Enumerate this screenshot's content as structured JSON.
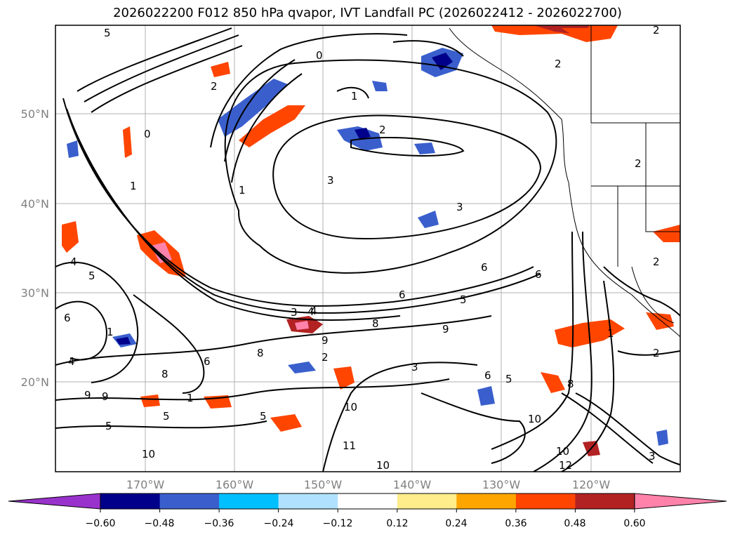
{
  "title": "2026022200 F012 850 hPa qvapor, IVT Landfall PC (2026022412 - 2026022700)",
  "lat_ticks": [
    "50°N",
    "40°N",
    "30°N",
    "20°N"
  ],
  "lon_ticks": [
    "170°W",
    "160°W",
    "150°W",
    "140°W",
    "130°W",
    "120°W"
  ],
  "colorbar": {
    "levels": [
      "−0.60",
      "−0.48",
      "−0.36",
      "−0.24",
      "−0.12",
      "0.12",
      "0.24",
      "0.36",
      "0.48",
      "0.60"
    ],
    "colors": [
      "#9932cc",
      "#00008b",
      "#3a5fcd",
      "#00bfff",
      "#b0e2ff",
      "#ffffff",
      "#ffec8b",
      "#ffa500",
      "#ff4500",
      "#b22222",
      "#ff82ab"
    ]
  },
  "contour_labels": [
    "5",
    "2",
    "0",
    "1",
    "2",
    "2",
    "1",
    "3",
    "3",
    "0",
    "1",
    "4",
    "5",
    "4",
    "6",
    "1",
    "4",
    "8",
    "9",
    "6",
    "8",
    "8",
    "9",
    "9",
    "5",
    "3",
    "4",
    "10",
    "5",
    "1",
    "6",
    "2",
    "6",
    "5",
    "6",
    "5",
    "9",
    "3",
    "6",
    "5",
    "10",
    "11",
    "10",
    "12",
    "10",
    "10",
    "8",
    "2",
    "1",
    "3",
    "2",
    "2",
    "2"
  ]
}
